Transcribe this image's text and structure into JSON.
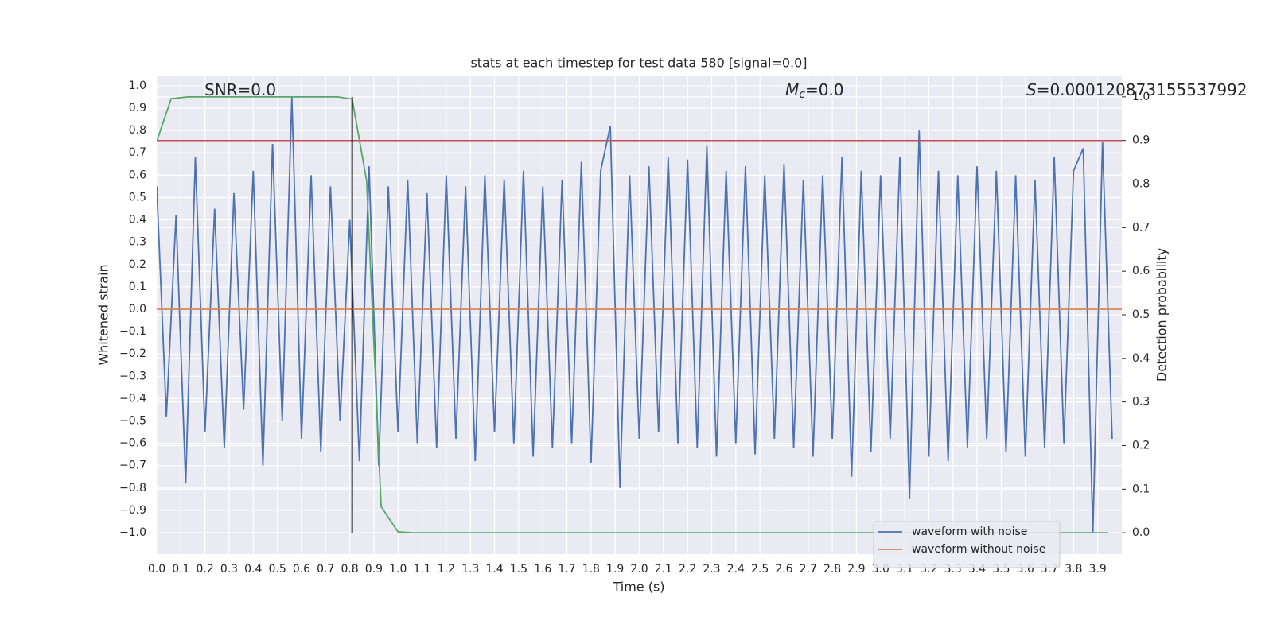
{
  "chart_data": {
    "type": "line",
    "title": "stats at each timestep for test data 580 [signal=0.0]",
    "xlabel": "Time (s)",
    "ylabel": "Whitened strain",
    "y2label": "Detection probability",
    "xlim": [
      0,
      4.0
    ],
    "ylim": [
      -1.096,
      1.046
    ],
    "y2lim": [
      -0.049,
      1.049
    ],
    "grid": true,
    "legend": "lower right",
    "xticks": [
      {
        "value": 0,
        "label": "0.0"
      },
      0.1,
      0.2,
      0.3,
      0.4,
      0.5,
      0.6,
      0.7,
      0.8,
      0.9,
      {
        "value": 1,
        "label": "1.0"
      },
      1.1,
      1.2,
      1.3,
      1.4,
      1.5,
      1.6,
      1.7,
      1.8,
      1.9,
      {
        "value": 2,
        "label": "2.0"
      },
      2.1,
      2.2,
      2.3,
      2.4,
      2.5,
      2.6,
      2.7,
      2.8,
      2.9,
      {
        "value": 3,
        "label": "3.0"
      },
      3.1,
      3.2,
      3.3,
      3.4,
      3.5,
      3.6,
      3.7,
      3.8,
      3.9
    ],
    "yticks": [
      {
        "value": -1,
        "label": "−1.0"
      },
      {
        "value": -0.9,
        "label": "−0.9"
      },
      {
        "value": -0.8,
        "label": "−0.8"
      },
      {
        "value": -0.7,
        "label": "−0.7"
      },
      {
        "value": -0.6,
        "label": "−0.6"
      },
      {
        "value": -0.5,
        "label": "−0.5"
      },
      {
        "value": -0.4,
        "label": "−0.4"
      },
      {
        "value": -0.3,
        "label": "−0.3"
      },
      {
        "value": -0.2,
        "label": "−0.2"
      },
      {
        "value": -0.1,
        "label": "−0.1"
      },
      {
        "value": 0,
        "label": "0.0"
      },
      0.1,
      0.2,
      0.3,
      0.4,
      0.5,
      0.6,
      0.7,
      0.8,
      0.9,
      {
        "value": 1,
        "label": "1.0"
      }
    ],
    "y2ticks": [
      {
        "value": 0,
        "label": "0.0"
      },
      0.1,
      0.2,
      0.3,
      0.4,
      0.5,
      0.6,
      0.7,
      0.8,
      0.9,
      {
        "value": 1,
        "label": "1.0"
      }
    ],
    "series": [
      {
        "name": "waveform with noise",
        "color": "#4c72b0",
        "axis": "y",
        "x": [
          0,
          0.04,
          0.08,
          0.12,
          0.16,
          0.2,
          0.24,
          0.28,
          0.32,
          0.36,
          0.4,
          0.44,
          0.48,
          0.52,
          0.56,
          0.6,
          0.64,
          0.68,
          0.72,
          0.76,
          0.8,
          0.84,
          0.88,
          0.92,
          0.96,
          1,
          1.04,
          1.08,
          1.12,
          1.16,
          1.2,
          1.24,
          1.28,
          1.32,
          1.36,
          1.4,
          1.44,
          1.48,
          1.52,
          1.56,
          1.6,
          1.64,
          1.68,
          1.72,
          1.76,
          1.8,
          1.84,
          1.88,
          1.92,
          1.96,
          2,
          2.04,
          2.08,
          2.12,
          2.16,
          2.2,
          2.24,
          2.28,
          2.32,
          2.36,
          2.4,
          2.44,
          2.48,
          2.52,
          2.56,
          2.6,
          2.64,
          2.68,
          2.72,
          2.76,
          2.8,
          2.84,
          2.88,
          2.92,
          2.96,
          3,
          3.04,
          3.08,
          3.12,
          3.16,
          3.2,
          3.24,
          3.28,
          3.32,
          3.36,
          3.4,
          3.44,
          3.48,
          3.52,
          3.56,
          3.6,
          3.64,
          3.68,
          3.72,
          3.76,
          3.8,
          3.84,
          3.88,
          3.92,
          3.96
        ],
        "values": [
          0.55,
          -0.48,
          0.42,
          -0.78,
          0.68,
          -0.55,
          0.45,
          -0.62,
          0.52,
          -0.45,
          0.62,
          -0.7,
          0.74,
          -0.5,
          0.95,
          -0.58,
          0.6,
          -0.64,
          0.55,
          -0.5,
          0.4,
          -0.68,
          0.64,
          -0.7,
          0.55,
          -0.55,
          0.58,
          -0.6,
          0.52,
          -0.62,
          0.6,
          -0.58,
          0.55,
          -0.68,
          0.6,
          -0.55,
          0.58,
          -0.6,
          0.62,
          -0.66,
          0.55,
          -0.62,
          0.58,
          -0.6,
          0.66,
          -0.69,
          0.62,
          0.82,
          -0.8,
          0.6,
          -0.58,
          0.64,
          -0.55,
          0.68,
          -0.6,
          0.67,
          -0.62,
          0.73,
          -0.66,
          0.62,
          -0.6,
          0.64,
          -0.65,
          0.6,
          -0.58,
          0.65,
          -0.62,
          0.58,
          -0.66,
          0.6,
          -0.58,
          0.68,
          -0.75,
          0.62,
          -0.64,
          0.6,
          -0.58,
          0.68,
          -0.85,
          0.8,
          -0.66,
          0.62,
          -0.68,
          0.6,
          -0.62,
          0.64,
          -0.58,
          0.62,
          -0.64,
          0.6,
          -0.66,
          0.58,
          -0.62,
          0.68,
          -0.6,
          0.62,
          0.72,
          -1.0,
          0.75,
          -0.58
        ]
      },
      {
        "name": "waveform without noise",
        "color": "#dd8452",
        "axis": "y",
        "x": [
          0,
          4.0
        ],
        "values": [
          0,
          0
        ]
      },
      {
        "color": "#55a868",
        "axis": "y2",
        "x": [
          0,
          0.06,
          0.13,
          0.19,
          0.25,
          0.31,
          0.38,
          0.44,
          0.5,
          0.56,
          0.63,
          0.69,
          0.75,
          0.81,
          0.87,
          0.93,
          1.0,
          1.06,
          3.94
        ],
        "values": [
          0.898,
          0.996,
          1.0,
          1.0,
          1.0,
          1.0,
          1.0,
          1.0,
          1.0,
          1.0,
          1.0,
          1.0,
          1.0,
          0.995,
          0.807,
          0.06,
          0.002,
          0.0,
          0.0
        ]
      }
    ],
    "hlines": [
      {
        "y": 0.9,
        "axis": "y2",
        "color": "#c44e52"
      }
    ],
    "vlines": [
      {
        "x": 0.81,
        "ymin": -1.0,
        "ymax": 0.95,
        "color": "#000000"
      }
    ],
    "annotations": [
      {
        "text": "SNR=0.0"
      },
      {
        "italic": "M",
        "sub": "c",
        "text": "=0.0"
      },
      {
        "italic": "S",
        "text": "=0.000120873155537992"
      }
    ]
  }
}
